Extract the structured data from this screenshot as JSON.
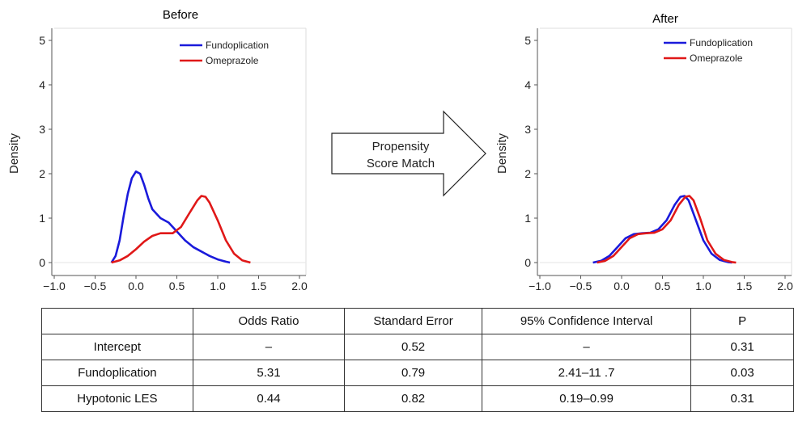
{
  "chart_data": [
    {
      "type": "line",
      "title": "Before",
      "ylabel": "Density",
      "xlabel": "",
      "xlim": [
        -1.0,
        2.0
      ],
      "ylim": [
        0,
        5
      ],
      "x_ticks": [
        "−1.0",
        "−0.5",
        "0.0",
        "0.5",
        "1.0",
        "1.5",
        "2.0"
      ],
      "y_ticks": [
        "0",
        "1",
        "2",
        "3",
        "4",
        "5"
      ],
      "legend_position": "top-right",
      "grid": false,
      "series": [
        {
          "name": "Fundoplication",
          "color": "#1a1adb",
          "points": [
            [
              -0.3,
              0.0
            ],
            [
              -0.25,
              0.15
            ],
            [
              -0.2,
              0.5
            ],
            [
              -0.15,
              1.05
            ],
            [
              -0.1,
              1.55
            ],
            [
              -0.05,
              1.9
            ],
            [
              0.0,
              2.05
            ],
            [
              0.05,
              2.0
            ],
            [
              0.1,
              1.75
            ],
            [
              0.15,
              1.45
            ],
            [
              0.2,
              1.2
            ],
            [
              0.3,
              1.0
            ],
            [
              0.4,
              0.9
            ],
            [
              0.5,
              0.7
            ],
            [
              0.6,
              0.5
            ],
            [
              0.7,
              0.35
            ],
            [
              0.8,
              0.25
            ],
            [
              0.9,
              0.15
            ],
            [
              1.0,
              0.07
            ],
            [
              1.1,
              0.02
            ],
            [
              1.15,
              0.0
            ]
          ]
        },
        {
          "name": "Omeprazole",
          "color": "#e01818",
          "points": [
            [
              -0.3,
              0.0
            ],
            [
              -0.2,
              0.05
            ],
            [
              -0.1,
              0.15
            ],
            [
              0.0,
              0.3
            ],
            [
              0.1,
              0.47
            ],
            [
              0.2,
              0.6
            ],
            [
              0.3,
              0.66
            ],
            [
              0.45,
              0.66
            ],
            [
              0.55,
              0.8
            ],
            [
              0.65,
              1.1
            ],
            [
              0.75,
              1.4
            ],
            [
              0.8,
              1.5
            ],
            [
              0.85,
              1.48
            ],
            [
              0.9,
              1.35
            ],
            [
              1.0,
              0.95
            ],
            [
              1.1,
              0.5
            ],
            [
              1.2,
              0.2
            ],
            [
              1.3,
              0.05
            ],
            [
              1.4,
              0.0
            ]
          ]
        }
      ]
    },
    {
      "type": "line",
      "title": "After",
      "ylabel": "Density",
      "xlabel": "",
      "xlim": [
        -1.0,
        2.0
      ],
      "ylim": [
        0,
        5
      ],
      "x_ticks": [
        "−1.0",
        "−0.5",
        "0.0",
        "0.5",
        "1.0",
        "1.5",
        "2.0"
      ],
      "y_ticks": [
        "0",
        "1",
        "2",
        "3",
        "4",
        "5"
      ],
      "legend_position": "top-right",
      "grid": false,
      "series": [
        {
          "name": "Fundoplication",
          "color": "#1a1adb",
          "points": [
            [
              -0.35,
              0.0
            ],
            [
              -0.25,
              0.04
            ],
            [
              -0.15,
              0.15
            ],
            [
              -0.05,
              0.35
            ],
            [
              0.05,
              0.55
            ],
            [
              0.15,
              0.64
            ],
            [
              0.25,
              0.66
            ],
            [
              0.35,
              0.67
            ],
            [
              0.45,
              0.75
            ],
            [
              0.55,
              0.95
            ],
            [
              0.65,
              1.3
            ],
            [
              0.72,
              1.48
            ],
            [
              0.77,
              1.5
            ],
            [
              0.82,
              1.4
            ],
            [
              0.9,
              1.0
            ],
            [
              1.0,
              0.5
            ],
            [
              1.1,
              0.2
            ],
            [
              1.2,
              0.06
            ],
            [
              1.3,
              0.01
            ],
            [
              1.35,
              0.0
            ]
          ]
        },
        {
          "name": "Omeprazole",
          "color": "#e01818",
          "points": [
            [
              -0.3,
              0.0
            ],
            [
              -0.2,
              0.04
            ],
            [
              -0.1,
              0.15
            ],
            [
              0.0,
              0.35
            ],
            [
              0.1,
              0.55
            ],
            [
              0.2,
              0.64
            ],
            [
              0.3,
              0.66
            ],
            [
              0.4,
              0.67
            ],
            [
              0.5,
              0.75
            ],
            [
              0.6,
              0.95
            ],
            [
              0.7,
              1.3
            ],
            [
              0.78,
              1.48
            ],
            [
              0.83,
              1.5
            ],
            [
              0.88,
              1.4
            ],
            [
              0.96,
              1.0
            ],
            [
              1.05,
              0.5
            ],
            [
              1.15,
              0.2
            ],
            [
              1.25,
              0.06
            ],
            [
              1.35,
              0.01
            ],
            [
              1.4,
              0.0
            ]
          ]
        }
      ]
    },
    {
      "type": "table",
      "headers": [
        "",
        "Odds Ratio",
        "Standard Error",
        "95% Confidence Interval",
        "P"
      ],
      "rows": [
        [
          "Intercept",
          "–",
          "0.52",
          "–",
          "0.31"
        ],
        [
          "Fundoplication",
          "5.31",
          "0.79",
          "2.41–11 .7",
          "0.03"
        ],
        [
          "Hypotonic LES",
          "0.44",
          "0.82",
          "0.19–0.99",
          "0.31"
        ]
      ]
    }
  ],
  "arrow": {
    "line1": "Propensity",
    "line2": "Score Match"
  }
}
